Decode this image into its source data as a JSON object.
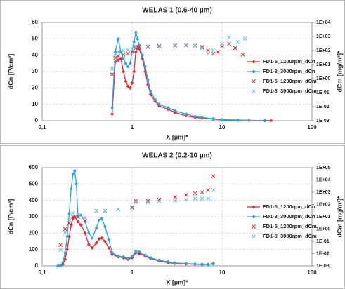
{
  "chart_data": [
    {
      "type": "line",
      "title": "WELAS 1 (0.6-40 µm)",
      "xlabel": "X [µm]*",
      "ylabel": "dCn [P/cm³]",
      "y2label": "dCm [mg/m³]*",
      "xscale": "log",
      "xlim": [
        0.1,
        100
      ],
      "xticks": [
        {
          "value": 0.1,
          "label": "0,1"
        },
        1,
        10,
        100
      ],
      "ylim": [
        0,
        60
      ],
      "yticks": [
        0,
        10,
        20,
        30,
        40,
        50,
        60
      ],
      "y2scale": "log",
      "y2lim": [
        0.001,
        10000
      ],
      "y2ticks": [
        {
          "value": 0.001,
          "label": "1E-03"
        },
        {
          "value": 0.01,
          "label": "1E-02"
        },
        {
          "value": 0.1,
          "label": "1E-01"
        },
        {
          "value": 1,
          "label": "1E+00"
        },
        {
          "value": 10,
          "label": "1E+01"
        },
        {
          "value": 100,
          "label": "1E+02"
        },
        {
          "value": 1000,
          "label": "1E+03"
        },
        {
          "value": 10000,
          "label": "1E+04"
        }
      ],
      "grid": true,
      "legend": "right",
      "series": [
        {
          "name": "FD1-5_1200rpm_dCn",
          "color": "#e3262b",
          "marker": "diamond",
          "x": [
            0.6,
            0.65,
            0.7,
            0.75,
            0.8,
            0.85,
            0.9,
            0.95,
            1.0,
            1.05,
            1.1,
            1.15,
            1.2,
            1.3,
            1.4,
            1.5,
            1.6,
            1.8,
            2.0,
            2.5,
            3.0,
            4,
            5,
            6,
            8,
            10,
            15,
            20,
            30,
            35
          ],
          "values": [
            4,
            36,
            37,
            38,
            30,
            24,
            21,
            20,
            23,
            30,
            42,
            45,
            44,
            38,
            30,
            22,
            16,
            12,
            9,
            7,
            5,
            3,
            2,
            1.5,
            1,
            0.5,
            0.3,
            0.2,
            0.1,
            0.1
          ]
        },
        {
          "name": "FD1-3_3000rpm_dCn",
          "color": "#2ea3dc",
          "marker": "circle",
          "x": [
            0.6,
            0.65,
            0.7,
            0.75,
            0.8,
            0.85,
            0.9,
            0.95,
            1.0,
            1.05,
            1.1,
            1.15,
            1.2,
            1.3,
            1.4,
            1.5,
            1.6,
            1.8,
            2.0,
            2.5,
            3.0,
            4,
            5,
            6,
            8,
            10,
            15,
            20,
            30
          ],
          "values": [
            8,
            42,
            50,
            42,
            38,
            35,
            33,
            35,
            42,
            48,
            54,
            50,
            46,
            40,
            33,
            25,
            18,
            13,
            10,
            8,
            6,
            4,
            2.5,
            2,
            1.2,
            0.7,
            0.4,
            0.2,
            0.1
          ]
        },
        {
          "name": "FD1-5_1200rpm_dCm",
          "color": "#e3262b",
          "marker": "x",
          "axis": "y2",
          "x": [
            0.6,
            0.65,
            0.7,
            0.8,
            0.9,
            1.0,
            1.1,
            1.2,
            1.5,
            2,
            3,
            4,
            5,
            6,
            7,
            8,
            9,
            10,
            12,
            14,
            17
          ],
          "values": [
            2,
            30,
            40,
            50,
            60,
            80,
            150,
            180,
            180,
            200,
            220,
            230,
            220,
            180,
            100,
            60,
            80,
            200,
            300,
            150,
            50
          ]
        },
        {
          "name": "FD1-3_3000rpm_dCm",
          "color": "#5bc0eb",
          "marker": "x",
          "axis": "y2",
          "x": [
            0.6,
            0.65,
            0.7,
            0.8,
            0.9,
            1.0,
            1.1,
            1.5,
            2,
            3,
            4,
            5,
            6,
            7,
            8,
            10,
            12,
            15,
            18
          ],
          "values": [
            5,
            60,
            80,
            100,
            110,
            130,
            200,
            200,
            220,
            250,
            250,
            230,
            150,
            60,
            100,
            300,
            900,
            400,
            700
          ]
        }
      ]
    },
    {
      "type": "line",
      "title": "WELAS 2 (0.2-10 µm)",
      "xlabel": "X [µm]*",
      "ylabel": "dCn [P/cm³]",
      "y2label": "dCm [mg/m³]*",
      "xscale": "log",
      "xlim": [
        0.1,
        100
      ],
      "xticks": [
        {
          "value": 0.1,
          "label": "0,1"
        },
        1,
        10,
        100
      ],
      "ylim": [
        0,
        600
      ],
      "yticks": [
        0,
        100,
        200,
        300,
        400,
        500,
        600
      ],
      "y2scale": "log",
      "y2lim": [
        0.001,
        100000
      ],
      "y2ticks": [
        {
          "value": 0.001,
          "label": "1E-03"
        },
        {
          "value": 0.01,
          "label": "1E-02"
        },
        {
          "value": 0.1,
          "label": "1E-01"
        },
        {
          "value": 1,
          "label": "1E+00"
        },
        {
          "value": 10,
          "label": "1E+01"
        },
        {
          "value": 100,
          "label": "1E+02"
        },
        {
          "value": 1000,
          "label": "1E+03"
        },
        {
          "value": 10000,
          "label": "1E+04"
        },
        {
          "value": 100000,
          "label": "1E+05"
        }
      ],
      "grid": true,
      "legend": "right",
      "series": [
        {
          "name": "FD1-5_1200rpm_dCn",
          "color": "#e3262b",
          "marker": "diamond",
          "x": [
            0.15,
            0.16,
            0.17,
            0.18,
            0.19,
            0.2,
            0.21,
            0.22,
            0.23,
            0.25,
            0.27,
            0.3,
            0.33,
            0.36,
            0.4,
            0.43,
            0.46,
            0.5,
            0.55,
            0.6,
            0.7,
            0.8,
            0.9,
            1.0,
            1.1,
            1.2,
            1.4,
            1.6,
            2,
            2.5,
            3,
            4,
            5,
            6,
            7,
            8
          ],
          "values": [
            0,
            2,
            10,
            40,
            100,
            180,
            250,
            290,
            300,
            270,
            250,
            200,
            130,
            110,
            140,
            165,
            170,
            150,
            110,
            70,
            55,
            50,
            40,
            50,
            80,
            75,
            60,
            45,
            30,
            20,
            15,
            12,
            10,
            8,
            8,
            15
          ]
        },
        {
          "name": "FD1-3_3000rpm_dCn",
          "color": "#2ea3dc",
          "marker": "circle",
          "x": [
            0.15,
            0.16,
            0.17,
            0.18,
            0.19,
            0.2,
            0.21,
            0.22,
            0.23,
            0.24,
            0.25,
            0.27,
            0.3,
            0.33,
            0.36,
            0.4,
            0.43,
            0.46,
            0.5,
            0.55,
            0.6,
            0.7,
            0.8,
            0.9,
            1.0,
            1.1,
            1.2,
            1.4,
            1.6,
            2,
            2.5,
            3,
            4,
            5,
            6,
            7,
            8
          ],
          "values": [
            0,
            3,
            20,
            80,
            180,
            320,
            470,
            560,
            580,
            500,
            300,
            310,
            270,
            200,
            170,
            230,
            280,
            290,
            240,
            160,
            80,
            60,
            55,
            45,
            60,
            90,
            85,
            65,
            50,
            35,
            25,
            18,
            14,
            12,
            10,
            9,
            12
          ]
        },
        {
          "name": "FD1-5_1200rpm_dCm",
          "color": "#e3262b",
          "marker": "x",
          "axis": "y2",
          "x": [
            0.16,
            0.18,
            0.2,
            0.22,
            0.25,
            0.3,
            0.4,
            0.5,
            0.7,
            1.0,
            1.1,
            1.5,
            2,
            3,
            4,
            5,
            6,
            7,
            8
          ],
          "values": [
            0.05,
            1,
            3,
            10,
            10,
            5,
            30,
            30,
            40,
            60,
            200,
            200,
            250,
            400,
            600,
            800,
            1000,
            1500,
            20000
          ]
        },
        {
          "name": "FD1-3_3000rpm_dCm",
          "color": "#5bc0eb",
          "marker": "x",
          "axis": "y2",
          "x": [
            0.16,
            0.18,
            0.2,
            0.22,
            0.25,
            0.3,
            0.4,
            0.5,
            0.7,
            1.0,
            1.1,
            1.5,
            2,
            3,
            4,
            5,
            6,
            7,
            8
          ],
          "values": [
            0.02,
            0.5,
            5,
            20,
            15,
            8,
            30,
            30,
            40,
            50,
            150,
            150,
            180,
            200,
            250,
            300,
            300,
            300,
            1500
          ]
        }
      ]
    }
  ]
}
